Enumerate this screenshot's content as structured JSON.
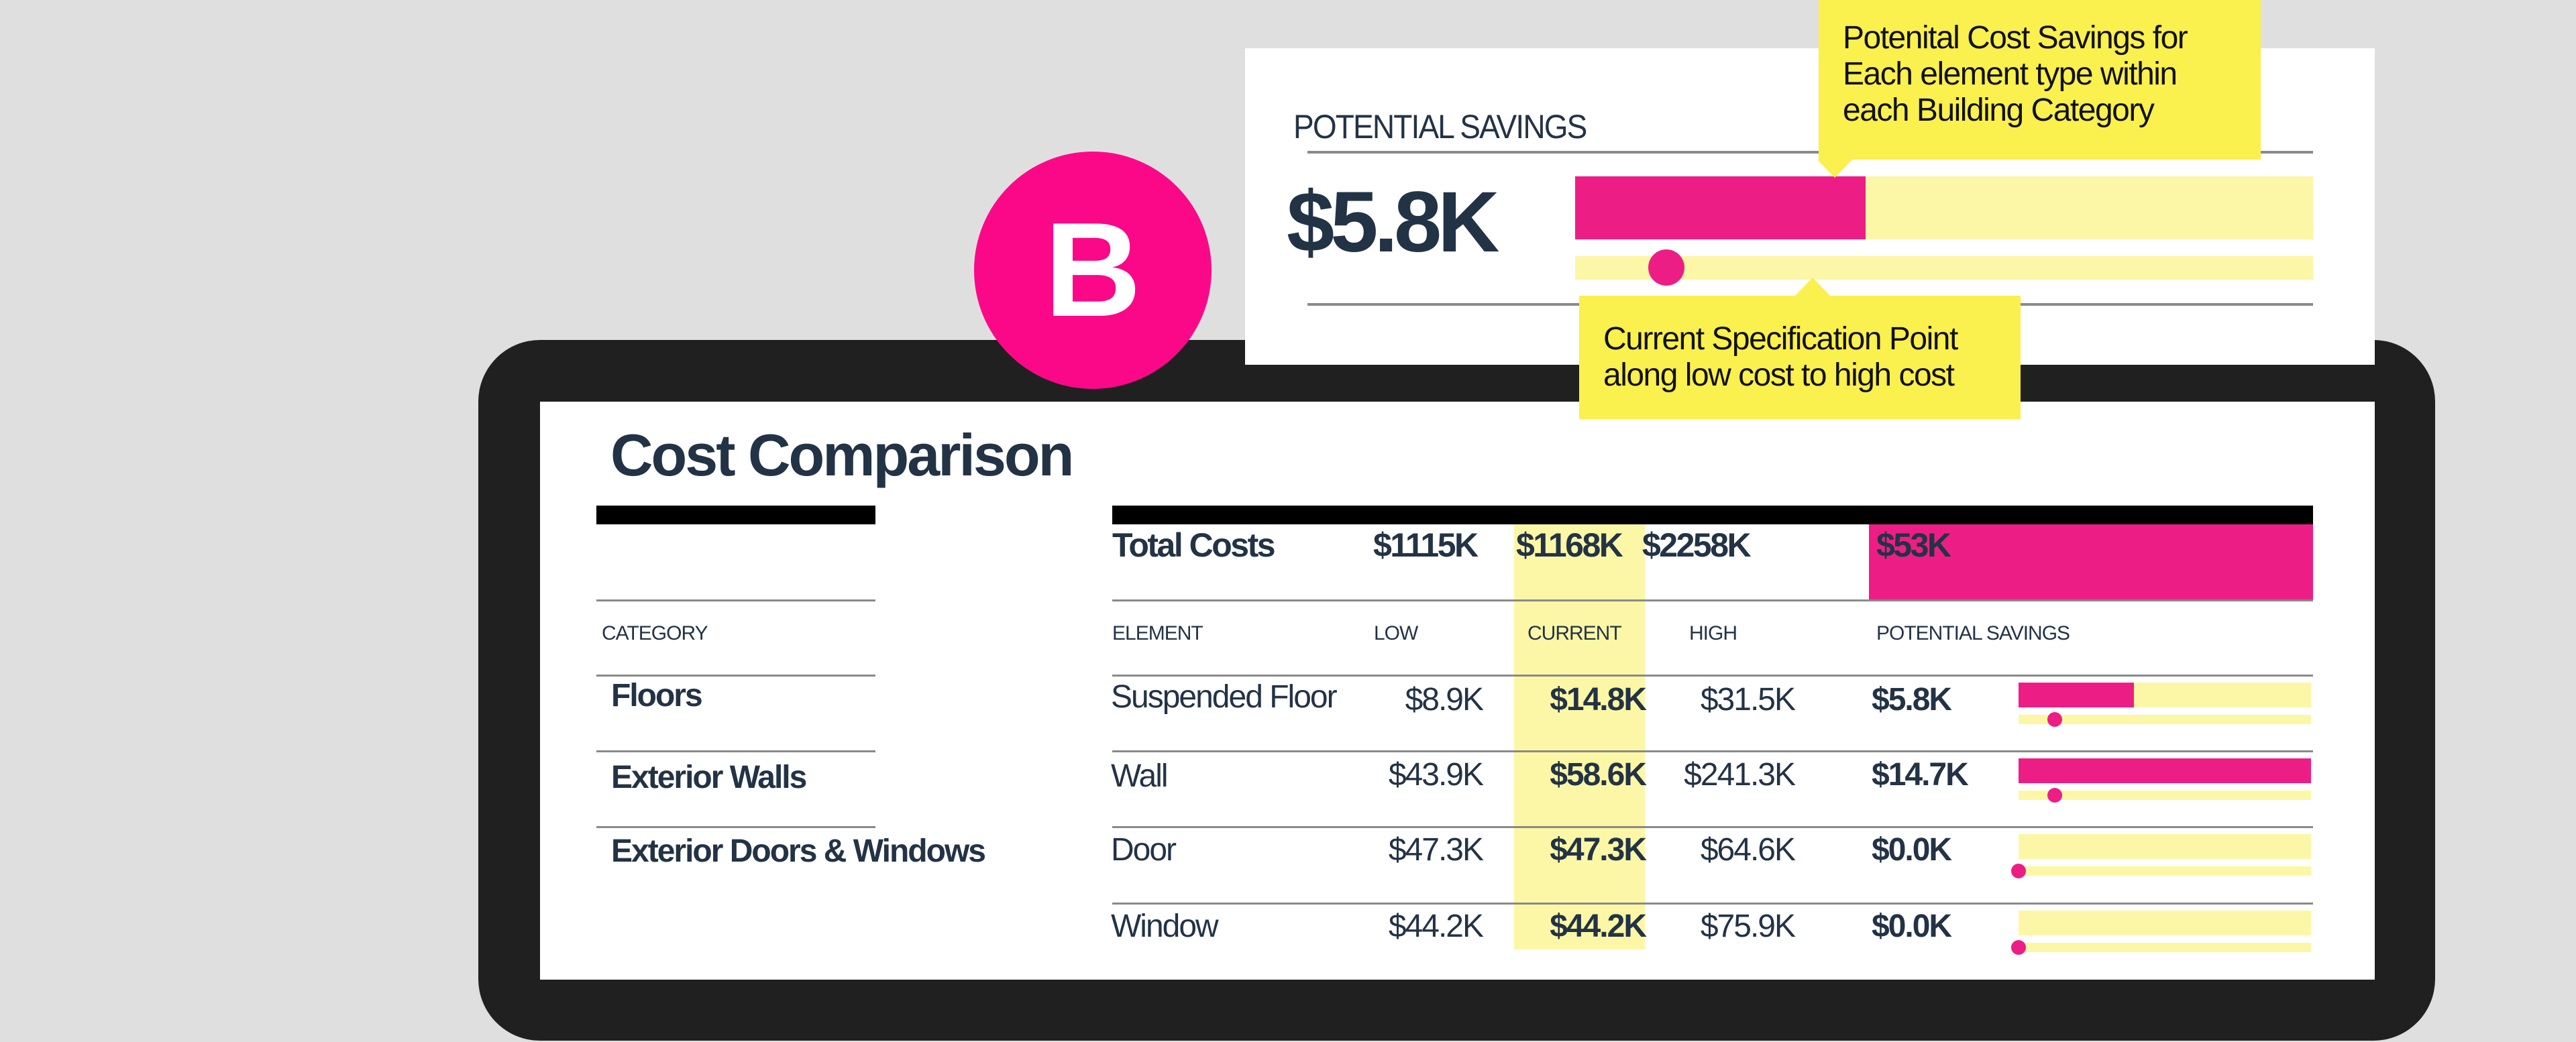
{
  "colors": {
    "background": "#dfdfdf",
    "frame": "#202020",
    "accent_pink": "#ec1e85",
    "badge_pink": "#fb0888",
    "pale_yellow": "#fcf7a6",
    "callout_yellow": "#faf04e",
    "text_navy": "#233346"
  },
  "badge": {
    "letter": "B"
  },
  "potential_card": {
    "label": "POTENTIAL SAVINGS",
    "value": "$5.8K",
    "savings_fill_pct": 39.4,
    "current_point_pct": 12.4
  },
  "callouts": {
    "top": {
      "lines": [
        "Potenital Cost Savings for",
        "Each element type within",
        "each Building Category"
      ]
    },
    "bottom": {
      "lines": [
        "Current Specification Point",
        "along low cost to high cost"
      ]
    }
  },
  "cost_comparison": {
    "title": "Cost Comparison",
    "totals": {
      "label": "Total Costs",
      "low": "$1115K",
      "current": "$1168K",
      "high": "$2258K",
      "savings": "$53K"
    },
    "headers": {
      "category": "CATEGORY",
      "element": "ELEMENT",
      "low": "LOW",
      "current": "CURRENT",
      "high": "HIGH",
      "potential_savings": "POTENTIAL SAVINGS"
    },
    "categories": [
      {
        "name": "Floors"
      },
      {
        "name": "Exterior Walls"
      },
      {
        "name": "Exterior Doors & Windows"
      }
    ],
    "rows": [
      {
        "category": "Floors",
        "element": "Suspended Floor",
        "low": "$8.9K",
        "current": "$14.8K",
        "high": "$31.5K",
        "savings": "$5.8K",
        "fill_pct": 39.4,
        "point_pct": 12.4
      },
      {
        "category": "Exterior Walls",
        "element": "Wall",
        "low": "$43.9K",
        "current": "$58.6K",
        "high": "$241.3K",
        "savings": "$14.7K",
        "fill_pct": 100,
        "point_pct": 12.4
      },
      {
        "category": "Exterior Doors & Windows",
        "element": "Door",
        "low": "$47.3K",
        "current": "$47.3K",
        "high": "$64.6K",
        "savings": "$0.0K",
        "fill_pct": 0,
        "point_pct": 0
      },
      {
        "category": "Exterior Doors & Windows",
        "element": "Window",
        "low": "$44.2K",
        "current": "$44.2K",
        "high": "$75.9K",
        "savings": "$0.0K",
        "fill_pct": 0,
        "point_pct": 0
      }
    ]
  },
  "chart_data": {
    "type": "table",
    "title": "Cost Comparison",
    "columns": [
      "Category",
      "Element",
      "Low",
      "Current",
      "High",
      "Potential Savings"
    ],
    "rows": [
      [
        "Floors",
        "Suspended Floor",
        8.9,
        14.8,
        31.5,
        5.8
      ],
      [
        "Exterior Walls",
        "Wall",
        43.9,
        58.6,
        241.3,
        14.7
      ],
      [
        "Exterior Doors & Windows",
        "Door",
        47.3,
        47.3,
        64.6,
        0.0
      ],
      [
        "Exterior Doors & Windows",
        "Window",
        44.2,
        44.2,
        75.9,
        0.0
      ]
    ],
    "totals": {
      "low": 1115,
      "current": 1168,
      "high": 2258,
      "savings": 53
    },
    "units": "$K"
  }
}
